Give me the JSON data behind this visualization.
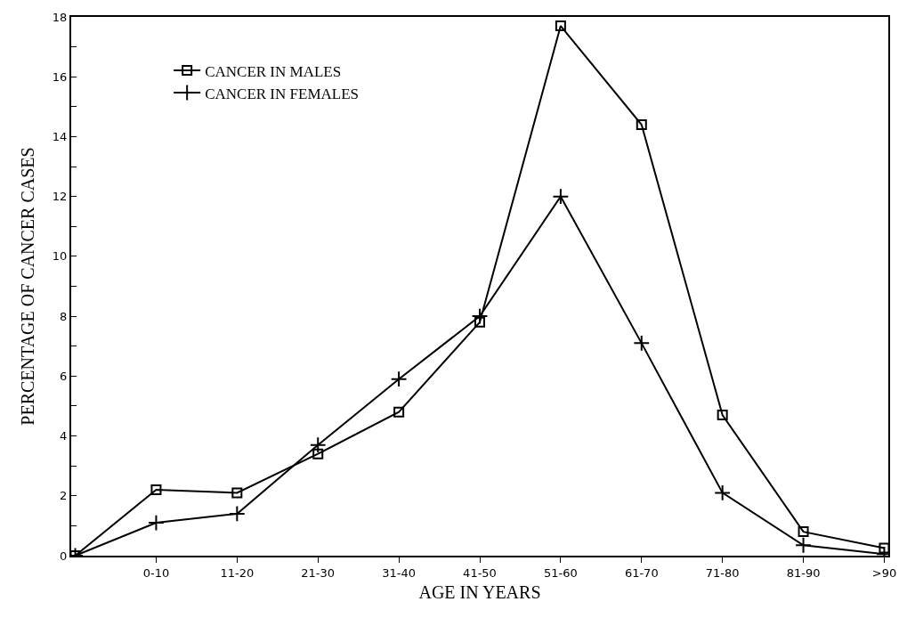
{
  "chart_data": {
    "type": "line",
    "xlabel": "AGE IN YEARS",
    "ylabel": "PERCENTAGE OF CANCER CASES",
    "categories": [
      null,
      "0-10",
      "11-20",
      "21-30",
      "31-40",
      "41-50",
      "51-60",
      "61-70",
      "71-80",
      "81-90",
      ">90"
    ],
    "series": [
      {
        "name": "CANCER IN MALES",
        "color": "#000000",
        "marker": "square",
        "values": [
          0,
          2.2,
          2.1,
          3.4,
          4.8,
          7.8,
          17.7,
          14.4,
          4.7,
          0.8,
          0.25
        ]
      },
      {
        "name": "CANCER IN FEMALES",
        "color": "#000000",
        "marker": "cross",
        "values": [
          0,
          1.1,
          1.4,
          3.7,
          5.9,
          8.0,
          12.0,
          7.1,
          2.1,
          0.35,
          0.05
        ]
      }
    ],
    "ylim": [
      0,
      18
    ],
    "yticks": [
      0,
      {
        "value": 1,
        "label": null
      },
      2,
      {
        "value": 3,
        "label": null
      },
      4,
      {
        "value": 5,
        "label": null
      },
      6,
      {
        "value": 7,
        "label": null
      },
      8,
      {
        "value": 9,
        "label": null
      },
      10,
      {
        "value": 11,
        "label": null
      },
      12,
      {
        "value": 13,
        "label": null
      },
      14,
      {
        "value": 15,
        "label": null
      },
      16,
      {
        "value": 17,
        "label": null
      },
      18
    ],
    "legend": "top left",
    "line_style": "solid"
  }
}
